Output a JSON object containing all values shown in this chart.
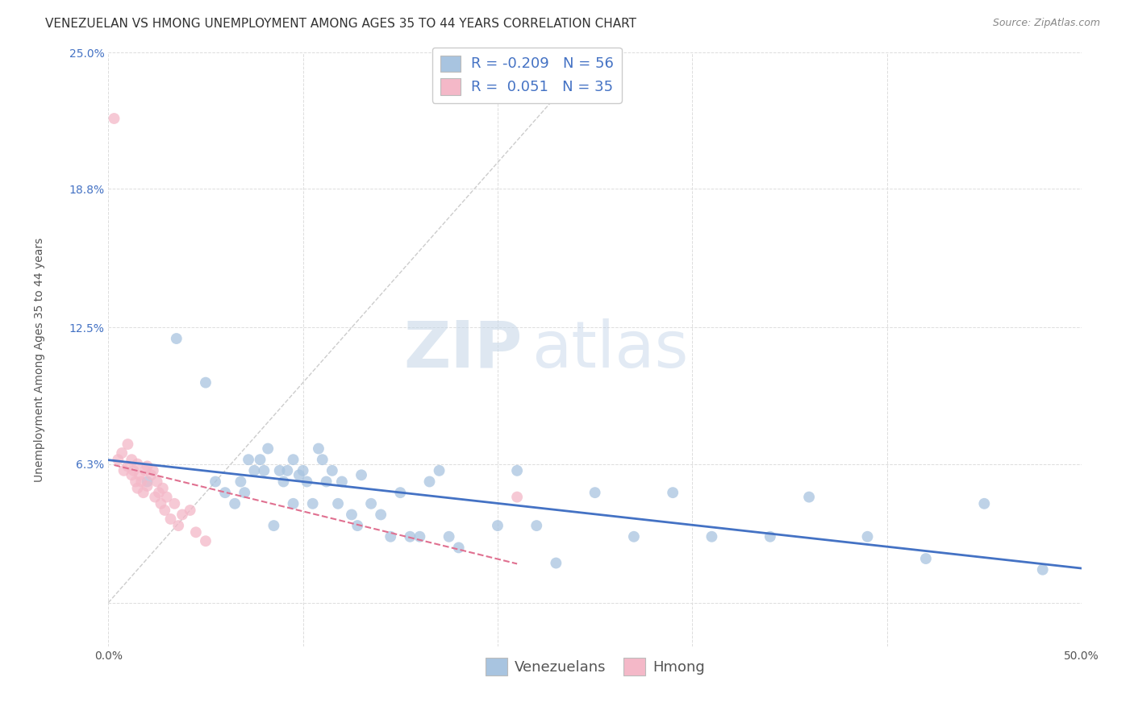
{
  "title": "VENEZUELAN VS HMONG UNEMPLOYMENT AMONG AGES 35 TO 44 YEARS CORRELATION CHART",
  "source": "Source: ZipAtlas.com",
  "ylabel": "Unemployment Among Ages 35 to 44 years",
  "xlim": [
    0.0,
    0.5
  ],
  "ylim": [
    -0.02,
    0.25
  ],
  "xtick_positions": [
    0.0,
    0.1,
    0.2,
    0.3,
    0.4,
    0.5
  ],
  "ytick_positions": [
    0.0,
    0.063,
    0.125,
    0.188,
    0.25
  ],
  "xticklabels": [
    "0.0%",
    "",
    "",
    "",
    "",
    "50.0%"
  ],
  "yticklabels": [
    "",
    "6.3%",
    "12.5%",
    "18.8%",
    "25.0%"
  ],
  "venezuelan_color": "#a8c4e0",
  "hmong_color": "#f4b8c8",
  "trend_color_venezuelan": "#4472c4",
  "trend_color_hmong": "#e07090",
  "diagonal_color": "#cccccc",
  "R_venezuelan": -0.209,
  "N_venezuelan": 56,
  "R_hmong": 0.051,
  "N_hmong": 35,
  "venezuelan_x": [
    0.02,
    0.035,
    0.05,
    0.055,
    0.06,
    0.065,
    0.068,
    0.07,
    0.072,
    0.075,
    0.078,
    0.08,
    0.082,
    0.085,
    0.088,
    0.09,
    0.092,
    0.095,
    0.095,
    0.098,
    0.1,
    0.102,
    0.105,
    0.108,
    0.11,
    0.112,
    0.115,
    0.118,
    0.12,
    0.125,
    0.128,
    0.13,
    0.135,
    0.14,
    0.145,
    0.15,
    0.155,
    0.16,
    0.165,
    0.17,
    0.175,
    0.18,
    0.2,
    0.21,
    0.22,
    0.23,
    0.25,
    0.27,
    0.29,
    0.31,
    0.34,
    0.36,
    0.39,
    0.42,
    0.45,
    0.48
  ],
  "venezuelan_y": [
    0.055,
    0.12,
    0.1,
    0.055,
    0.05,
    0.045,
    0.055,
    0.05,
    0.065,
    0.06,
    0.065,
    0.06,
    0.07,
    0.035,
    0.06,
    0.055,
    0.06,
    0.065,
    0.045,
    0.058,
    0.06,
    0.055,
    0.045,
    0.07,
    0.065,
    0.055,
    0.06,
    0.045,
    0.055,
    0.04,
    0.035,
    0.058,
    0.045,
    0.04,
    0.03,
    0.05,
    0.03,
    0.03,
    0.055,
    0.06,
    0.03,
    0.025,
    0.035,
    0.06,
    0.035,
    0.018,
    0.05,
    0.03,
    0.05,
    0.03,
    0.03,
    0.048,
    0.03,
    0.02,
    0.045,
    0.015
  ],
  "hmong_x": [
    0.003,
    0.005,
    0.007,
    0.008,
    0.01,
    0.01,
    0.012,
    0.012,
    0.013,
    0.014,
    0.015,
    0.015,
    0.016,
    0.017,
    0.018,
    0.019,
    0.02,
    0.02,
    0.022,
    0.023,
    0.024,
    0.025,
    0.026,
    0.027,
    0.028,
    0.029,
    0.03,
    0.032,
    0.034,
    0.036,
    0.038,
    0.042,
    0.045,
    0.05,
    0.21
  ],
  "hmong_y": [
    0.22,
    0.065,
    0.068,
    0.06,
    0.072,
    0.062,
    0.065,
    0.058,
    0.06,
    0.055,
    0.063,
    0.052,
    0.058,
    0.055,
    0.05,
    0.06,
    0.062,
    0.053,
    0.058,
    0.06,
    0.048,
    0.055,
    0.05,
    0.045,
    0.052,
    0.042,
    0.048,
    0.038,
    0.045,
    0.035,
    0.04,
    0.042,
    0.032,
    0.028,
    0.048
  ],
  "watermark_zip": "ZIP",
  "watermark_atlas": "atlas",
  "background_color": "#ffffff",
  "title_fontsize": 11,
  "axis_label_fontsize": 10,
  "tick_fontsize": 10,
  "legend_fontsize": 12
}
